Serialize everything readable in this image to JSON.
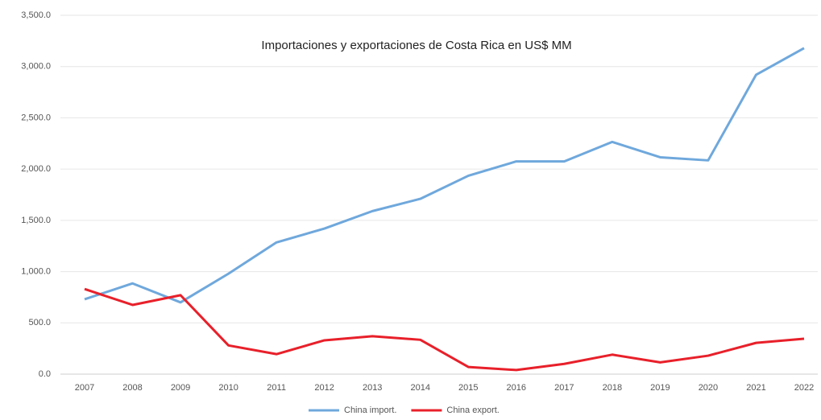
{
  "chart_data": {
    "type": "line",
    "title": "Importaciones y exportaciones de Costa Rica en US$ MM",
    "categories": [
      "2007",
      "2008",
      "2009",
      "2010",
      "2011",
      "2012",
      "2013",
      "2014",
      "2015",
      "2016",
      "2017",
      "2018",
      "2019",
      "2020",
      "2021",
      "2022"
    ],
    "series": [
      {
        "name": "China import.",
        "color": "#6fa8dc",
        "values": [
          730,
          885,
          700,
          980,
          1285,
          1420,
          1590,
          1710,
          1935,
          2075,
          2075,
          2265,
          2115,
          2085,
          2920,
          3180
        ]
      },
      {
        "name": "China export.",
        "color": "#e8202a",
        "values": [
          830,
          675,
          770,
          280,
          195,
          330,
          370,
          335,
          70,
          40,
          100,
          190,
          115,
          180,
          305,
          345
        ]
      }
    ],
    "ylim": [
      0,
      3500
    ],
    "yticks": [
      {
        "value": 0,
        "label": "0.0"
      },
      {
        "value": 500,
        "label": "500.0"
      },
      {
        "value": 1000,
        "label": "1,000.0"
      },
      {
        "value": 1500,
        "label": "1,500.0"
      },
      {
        "value": 2000,
        "label": "2,000.0"
      },
      {
        "value": 2500,
        "label": "2,500.0"
      },
      {
        "value": 3000,
        "label": "3,000.0"
      },
      {
        "value": 3500,
        "label": "3,500.0"
      }
    ],
    "grid": true,
    "legend": "bottom"
  }
}
